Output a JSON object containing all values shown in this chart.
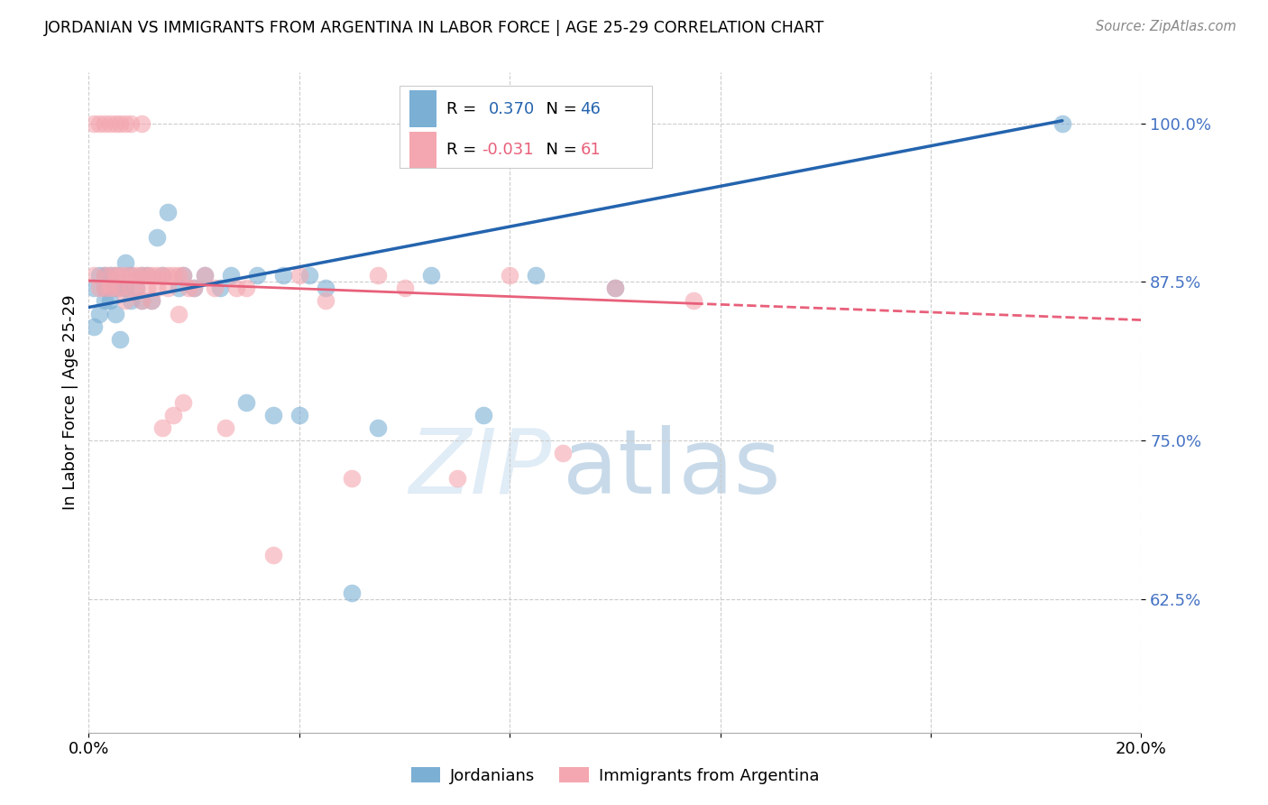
{
  "title": "JORDANIAN VS IMMIGRANTS FROM ARGENTINA IN LABOR FORCE | AGE 25-29 CORRELATION CHART",
  "source": "Source: ZipAtlas.com",
  "ylabel": "In Labor Force | Age 25-29",
  "xlim": [
    0.0,
    0.2
  ],
  "ylim": [
    0.52,
    1.04
  ],
  "yticks": [
    0.625,
    0.75,
    0.875,
    1.0
  ],
  "ytick_labels": [
    "62.5%",
    "75.0%",
    "87.5%",
    "100.0%"
  ],
  "jordan_R": 0.37,
  "jordan_N": 46,
  "arg_R": -0.031,
  "arg_N": 61,
  "jordan_color": "#7bafd4",
  "arg_color": "#f4a7b0",
  "jordan_line_color": "#2464ae",
  "arg_line_color": "#e8607a",
  "legend_label_jordan": "Jordanians",
  "legend_label_arg": "Immigrants from Argentina",
  "jordan_x": [
    0.001,
    0.001,
    0.002,
    0.002,
    0.003,
    0.003,
    0.003,
    0.004,
    0.004,
    0.005,
    0.005,
    0.005,
    0.006,
    0.006,
    0.007,
    0.007,
    0.008,
    0.008,
    0.009,
    0.01,
    0.01,
    0.011,
    0.012,
    0.013,
    0.014,
    0.015,
    0.017,
    0.018,
    0.02,
    0.022,
    0.025,
    0.027,
    0.03,
    0.032,
    0.035,
    0.037,
    0.04,
    0.042,
    0.045,
    0.05,
    0.055,
    0.065,
    0.075,
    0.085,
    0.1,
    0.185
  ],
  "jordan_y": [
    0.87,
    0.84,
    0.88,
    0.85,
    0.88,
    0.86,
    0.87,
    0.86,
    0.88,
    0.87,
    0.85,
    0.88,
    0.87,
    0.83,
    0.89,
    0.87,
    0.86,
    0.88,
    0.87,
    0.88,
    0.86,
    0.88,
    0.86,
    0.91,
    0.88,
    0.93,
    0.87,
    0.88,
    0.87,
    0.88,
    0.87,
    0.88,
    0.78,
    0.88,
    0.77,
    0.88,
    0.77,
    0.88,
    0.87,
    0.63,
    0.76,
    0.88,
    0.77,
    0.88,
    0.87,
    1.0
  ],
  "arg_x": [
    0.001,
    0.001,
    0.002,
    0.002,
    0.003,
    0.003,
    0.003,
    0.004,
    0.004,
    0.004,
    0.005,
    0.005,
    0.005,
    0.006,
    0.006,
    0.006,
    0.007,
    0.007,
    0.007,
    0.008,
    0.008,
    0.008,
    0.009,
    0.009,
    0.01,
    0.01,
    0.01,
    0.011,
    0.011,
    0.012,
    0.012,
    0.013,
    0.013,
    0.014,
    0.014,
    0.015,
    0.015,
    0.016,
    0.016,
    0.017,
    0.017,
    0.018,
    0.018,
    0.019,
    0.02,
    0.022,
    0.024,
    0.026,
    0.028,
    0.03,
    0.035,
    0.04,
    0.045,
    0.05,
    0.055,
    0.06,
    0.07,
    0.08,
    0.09,
    0.1,
    0.115
  ],
  "arg_y": [
    0.88,
    1.0,
    0.87,
    1.0,
    0.88,
    1.0,
    0.87,
    0.88,
    1.0,
    0.87,
    0.88,
    1.0,
    0.87,
    0.88,
    1.0,
    0.87,
    0.88,
    1.0,
    0.86,
    0.87,
    0.88,
    1.0,
    0.88,
    0.87,
    0.88,
    0.86,
    1.0,
    0.88,
    0.87,
    0.88,
    0.86,
    0.88,
    0.87,
    0.88,
    0.76,
    0.88,
    0.87,
    0.88,
    0.77,
    0.88,
    0.85,
    0.88,
    0.78,
    0.87,
    0.87,
    0.88,
    0.87,
    0.76,
    0.87,
    0.87,
    0.66,
    0.88,
    0.86,
    0.72,
    0.88,
    0.87,
    0.72,
    0.88,
    0.74,
    0.87,
    0.86
  ]
}
